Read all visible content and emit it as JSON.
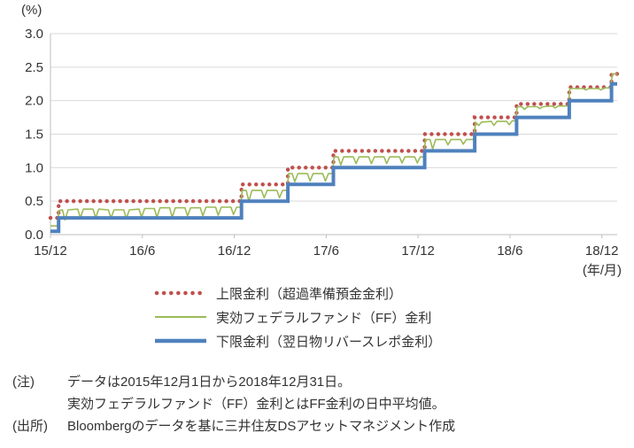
{
  "chart_data": {
    "type": "line",
    "title": "",
    "grid": {
      "color": "#d9d9d9",
      "axis_color": "#bfbfbf",
      "on": true
    },
    "y_axis": {
      "unit_label": "(%)",
      "min": 0.0,
      "max": 3.0,
      "tick_step": 0.5,
      "tick_labels": [
        "0.0",
        "0.5",
        "1.0",
        "1.5",
        "2.0",
        "2.5",
        "3.0"
      ]
    },
    "x_axis": {
      "unit_label": "(年/月)",
      "min": 0,
      "max": 37,
      "ticks": [
        {
          "x": 0,
          "label": "15/12"
        },
        {
          "x": 6,
          "label": "16/6"
        },
        {
          "x": 12,
          "label": "16/12"
        },
        {
          "x": 18,
          "label": "17/6"
        },
        {
          "x": 24,
          "label": "17/12"
        },
        {
          "x": 30,
          "label": "18/6"
        },
        {
          "x": 36,
          "label": "18/12"
        }
      ]
    },
    "series": [
      {
        "id": "upper-limit",
        "name": "上限金利（超過準備預金金利）",
        "style": "dotted",
        "color": "#c0504d",
        "x_end": 37,
        "step_data": [
          [
            0,
            0.25
          ],
          [
            0.53,
            0.5
          ],
          [
            12.47,
            0.75
          ],
          [
            15.5,
            1.0
          ],
          [
            18.47,
            1.25
          ],
          [
            24.43,
            1.5
          ],
          [
            27.7,
            1.75
          ],
          [
            30.43,
            1.95
          ],
          [
            33.87,
            2.2
          ],
          [
            36.63,
            2.4
          ]
        ]
      },
      {
        "id": "effective-ff",
        "name": "実効フェデラルファンド（FF）金利",
        "style": "thin-line",
        "color": "#9bbb59",
        "points": [
          [
            0,
            0.13
          ],
          [
            0.45,
            0.13
          ],
          [
            0.55,
            0.36
          ],
          [
            0.78,
            0.37
          ],
          [
            0.95,
            0.22
          ],
          [
            1.15,
            0.37
          ],
          [
            1.78,
            0.38
          ],
          [
            1.95,
            0.25
          ],
          [
            2.15,
            0.38
          ],
          [
            2.78,
            0.38
          ],
          [
            2.95,
            0.25
          ],
          [
            3.15,
            0.38
          ],
          [
            3.78,
            0.37
          ],
          [
            3.95,
            0.25
          ],
          [
            4.15,
            0.37
          ],
          [
            4.78,
            0.37
          ],
          [
            4.95,
            0.24
          ],
          [
            5.15,
            0.37
          ],
          [
            5.78,
            0.38
          ],
          [
            5.95,
            0.26
          ],
          [
            6.15,
            0.39
          ],
          [
            6.78,
            0.39
          ],
          [
            6.95,
            0.26
          ],
          [
            7.15,
            0.4
          ],
          [
            7.78,
            0.4
          ],
          [
            7.95,
            0.26
          ],
          [
            8.15,
            0.4
          ],
          [
            8.78,
            0.4
          ],
          [
            8.95,
            0.28
          ],
          [
            9.15,
            0.4
          ],
          [
            9.78,
            0.4
          ],
          [
            9.95,
            0.28
          ],
          [
            10.15,
            0.41
          ],
          [
            10.78,
            0.41
          ],
          [
            10.95,
            0.29
          ],
          [
            11.15,
            0.41
          ],
          [
            11.78,
            0.41
          ],
          [
            11.95,
            0.3
          ],
          [
            12.15,
            0.41
          ],
          [
            12.42,
            0.41
          ],
          [
            12.52,
            0.66
          ],
          [
            12.78,
            0.66
          ],
          [
            12.95,
            0.5
          ],
          [
            13.15,
            0.66
          ],
          [
            13.78,
            0.66
          ],
          [
            13.95,
            0.55
          ],
          [
            14.15,
            0.66
          ],
          [
            14.78,
            0.66
          ],
          [
            14.95,
            0.55
          ],
          [
            15.15,
            0.66
          ],
          [
            15.45,
            0.66
          ],
          [
            15.55,
            0.91
          ],
          [
            15.78,
            0.91
          ],
          [
            15.95,
            0.79
          ],
          [
            16.15,
            0.91
          ],
          [
            16.78,
            0.91
          ],
          [
            16.95,
            0.8
          ],
          [
            17.15,
            0.91
          ],
          [
            17.78,
            0.91
          ],
          [
            17.95,
            0.8
          ],
          [
            18.15,
            0.91
          ],
          [
            18.42,
            0.91
          ],
          [
            18.52,
            1.16
          ],
          [
            18.78,
            1.16
          ],
          [
            18.95,
            1.04
          ],
          [
            19.15,
            1.16
          ],
          [
            19.78,
            1.16
          ],
          [
            19.95,
            1.06
          ],
          [
            20.15,
            1.16
          ],
          [
            20.78,
            1.16
          ],
          [
            20.95,
            1.06
          ],
          [
            21.15,
            1.16
          ],
          [
            21.78,
            1.16
          ],
          [
            21.95,
            1.06
          ],
          [
            22.15,
            1.16
          ],
          [
            22.78,
            1.16
          ],
          [
            22.95,
            1.07
          ],
          [
            23.15,
            1.16
          ],
          [
            23.78,
            1.16
          ],
          [
            23.95,
            1.07
          ],
          [
            24.15,
            1.16
          ],
          [
            24.38,
            1.16
          ],
          [
            24.48,
            1.42
          ],
          [
            24.78,
            1.42
          ],
          [
            24.95,
            1.28
          ],
          [
            25.15,
            1.42
          ],
          [
            25.78,
            1.42
          ],
          [
            25.95,
            1.34
          ],
          [
            26.15,
            1.42
          ],
          [
            26.78,
            1.42
          ],
          [
            26.95,
            1.35
          ],
          [
            27.15,
            1.42
          ],
          [
            27.65,
            1.42
          ],
          [
            27.75,
            1.68
          ],
          [
            27.95,
            1.63
          ],
          [
            28.15,
            1.68
          ],
          [
            28.78,
            1.69
          ],
          [
            28.95,
            1.63
          ],
          [
            29.15,
            1.69
          ],
          [
            29.78,
            1.69
          ],
          [
            29.95,
            1.64
          ],
          [
            30.15,
            1.7
          ],
          [
            30.38,
            1.7
          ],
          [
            30.48,
            1.91
          ],
          [
            30.78,
            1.91
          ],
          [
            30.95,
            1.87
          ],
          [
            31.15,
            1.91
          ],
          [
            31.78,
            1.91
          ],
          [
            31.95,
            1.88
          ],
          [
            32.15,
            1.91
          ],
          [
            32.78,
            1.92
          ],
          [
            32.95,
            1.89
          ],
          [
            33.15,
            1.92
          ],
          [
            33.8,
            1.92
          ],
          [
            33.92,
            2.18
          ],
          [
            34.78,
            2.18
          ],
          [
            34.95,
            2.16
          ],
          [
            35.15,
            2.18
          ],
          [
            35.78,
            2.18
          ],
          [
            35.95,
            2.16
          ],
          [
            36.15,
            2.19
          ],
          [
            36.58,
            2.19
          ],
          [
            36.68,
            2.4
          ],
          [
            37,
            2.4
          ]
        ]
      },
      {
        "id": "lower-limit",
        "name": "下限金利（翌日物リバースレポ金利）",
        "style": "thick-line",
        "color": "#4f81bd",
        "x_end": 37,
        "step_data": [
          [
            0,
            0.05
          ],
          [
            0.53,
            0.25
          ],
          [
            12.47,
            0.5
          ],
          [
            15.5,
            0.75
          ],
          [
            18.47,
            1.0
          ],
          [
            24.43,
            1.25
          ],
          [
            27.7,
            1.5
          ],
          [
            30.43,
            1.75
          ],
          [
            33.87,
            2.0
          ],
          [
            36.63,
            2.25
          ]
        ]
      }
    ]
  },
  "notes": {
    "rows": [
      {
        "label": "(注)",
        "text": "データは2015年12月1日から2018年12月31日。"
      },
      {
        "label": "",
        "text": "実効フェデラルファンド（FF）金利とはFF金利の日中平均値。"
      },
      {
        "label": "(出所)",
        "text": "Bloombergのデータを基に三井住友DSアセットマネジメント作成"
      }
    ]
  }
}
